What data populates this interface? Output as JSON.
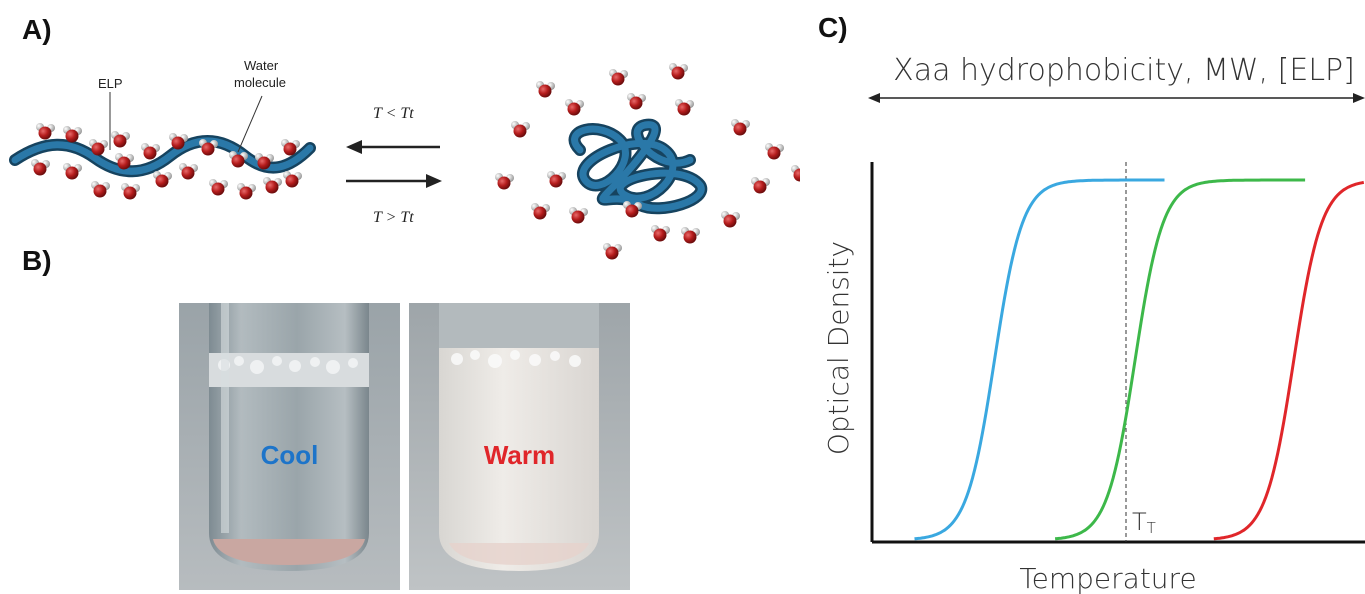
{
  "panel_a": {
    "label": "A)",
    "elp_label": "ELP",
    "water_label_line1": "Water",
    "water_label_line2": "molecule",
    "cool_condition": "T < Tt",
    "warm_condition": "T > Tt"
  },
  "panel_b": {
    "label": "B)",
    "cool_word": "Cool",
    "warm_word": "Warm"
  },
  "panel_c": {
    "label": "C)",
    "top_axis_label": "Xaa hydrophobicity, MW, [ELP]",
    "tt_label": "TT"
  },
  "chart_data": {
    "type": "line",
    "xlabel": "Temperature",
    "ylabel": "Optical Density",
    "series": [
      {
        "color": "#3aa8e0",
        "transition_x": 0.27,
        "values": "sigmoid"
      },
      {
        "color": "#3db84a",
        "transition_x": 0.58,
        "values": "sigmoid"
      },
      {
        "color": "#e0262a",
        "transition_x": 0.93,
        "values": "sigmoid"
      }
    ],
    "vline": {
      "style": "dashed",
      "label": "TT"
    },
    "colors": {
      "cool": "#1d74c9",
      "warm": "#e0262a",
      "elp_chain": "#1f5f86",
      "water_red": "#b31b1b"
    }
  }
}
